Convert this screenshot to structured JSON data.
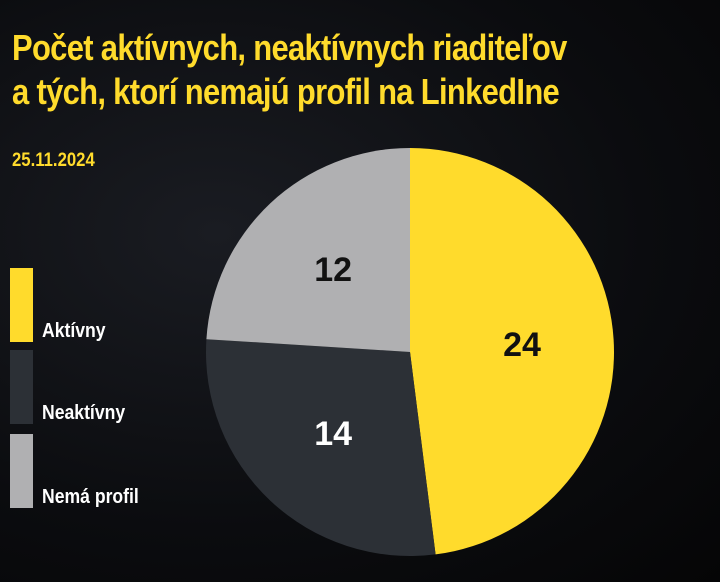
{
  "title_lines": [
    "Počet aktívnych, neaktívnych riaditeľov",
    "a tých, ktorí nemajú profil na LinkedIne"
  ],
  "date": "25.11.2024",
  "chart_data": {
    "type": "pie",
    "title": "Počet aktívnych, neaktívnych riaditeľov a tých, ktorí nemajú profil na LinkedIne",
    "categories": [
      "Aktívny",
      "Neaktívny",
      "Nemá profil"
    ],
    "values": [
      24,
      14,
      12
    ],
    "colors": [
      "#ffdb2c",
      "#2c3036",
      "#b0b0b2"
    ],
    "label_colors": [
      "#111111",
      "#ffffff",
      "#111111"
    ],
    "start_angle_deg": 0,
    "direction": "clockwise",
    "legend_position": "left"
  }
}
